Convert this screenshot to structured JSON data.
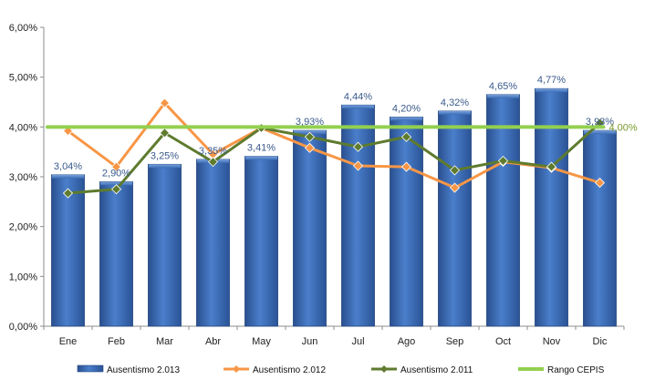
{
  "chart_data": {
    "type": "bar",
    "categories": [
      "Ene",
      "Feb",
      "Mar",
      "Abr",
      "May",
      "Jun",
      "Jul",
      "Ago",
      "Sep",
      "Oct",
      "Nov",
      "Dic"
    ],
    "ylim": [
      0,
      6
    ],
    "yticks": [
      "0,00%",
      "1,00%",
      "2,00%",
      "3,00%",
      "4,00%",
      "5,00%",
      "6,00%"
    ],
    "ytick_values": [
      0,
      1,
      2,
      3,
      4,
      5,
      6
    ],
    "grid": false,
    "legend_position": "bottom",
    "series": [
      {
        "name": "Ausentismo 2.013",
        "kind": "bar",
        "color": "#3b6cb5",
        "values": [
          3.04,
          2.9,
          3.25,
          3.35,
          3.41,
          3.93,
          4.44,
          4.2,
          4.32,
          4.65,
          4.77,
          3.93
        ],
        "labels": [
          "3,04%",
          "2,90%",
          "3,25%",
          "3,35%",
          "3,41%",
          "3,93%",
          "4,44%",
          "4,20%",
          "4,32%",
          "4,65%",
          "4,77%",
          "3,93%"
        ]
      },
      {
        "name": "Ausentismo 2.012",
        "kind": "line",
        "marker": "diamond",
        "color": "#f79646",
        "values": [
          3.92,
          3.2,
          4.48,
          3.45,
          3.98,
          3.58,
          3.22,
          3.2,
          2.78,
          3.3,
          3.18,
          2.88
        ]
      },
      {
        "name": "Ausentismo 2.011",
        "kind": "line",
        "marker": "diamond",
        "color": "#5e7b2e",
        "values": [
          2.67,
          2.75,
          3.88,
          3.3,
          3.98,
          3.8,
          3.6,
          3.8,
          3.13,
          3.32,
          3.2,
          4.08
        ]
      },
      {
        "name": "Rango CEPIS",
        "kind": "line",
        "marker": "none",
        "color": "#92d050",
        "values": [
          4.0,
          4.0,
          4.0,
          4.0,
          4.0,
          4.0,
          4.0,
          4.0,
          4.0,
          4.0,
          4.0,
          4.0
        ],
        "end_label": "4,00%",
        "end_label_color": "#7a9a2e"
      }
    ]
  }
}
